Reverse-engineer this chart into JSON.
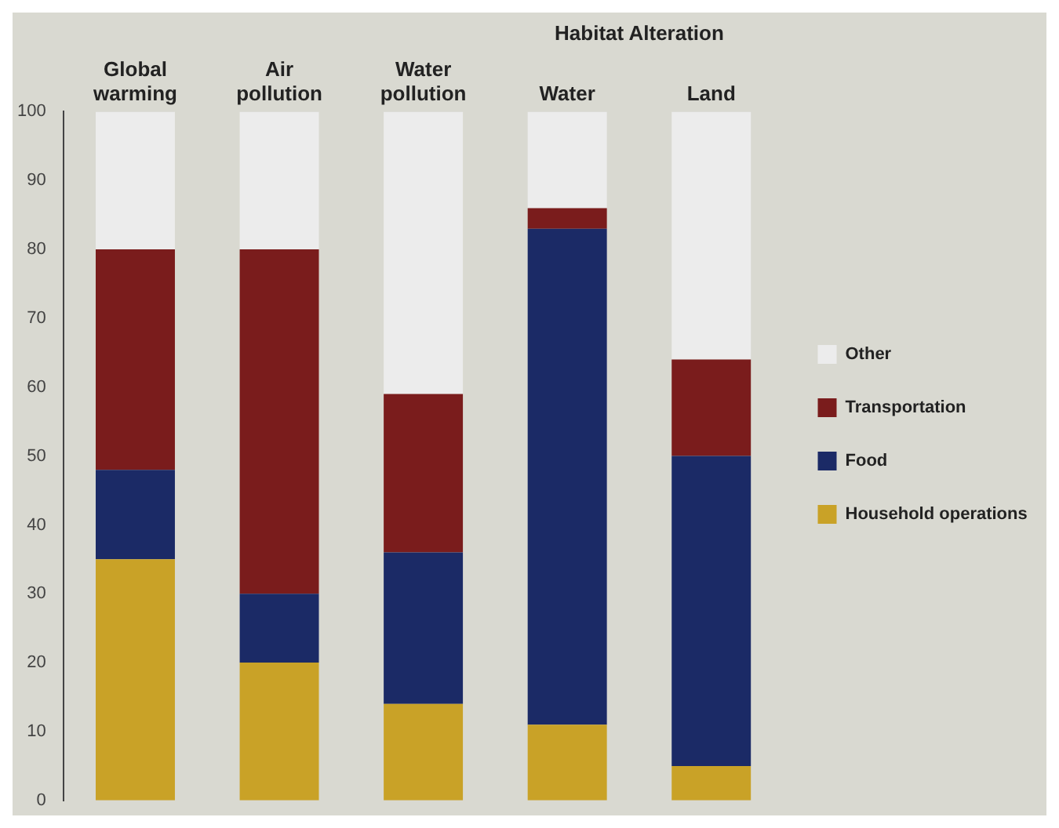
{
  "chart_data": {
    "type": "bar",
    "stacked": true,
    "categories": [
      "Global warming",
      "Air pollution",
      "Water pollution",
      "Water",
      "Land"
    ],
    "series": [
      {
        "name": "Household operations",
        "color": "#c9a227",
        "values": [
          35,
          20,
          14,
          11,
          5
        ]
      },
      {
        "name": "Food",
        "color": "#1b2a66",
        "values": [
          13,
          10,
          22,
          72,
          45
        ]
      },
      {
        "name": "Transportation",
        "color": "#7a1c1c",
        "values": [
          32,
          50,
          23,
          3,
          14
        ]
      },
      {
        "name": "Other",
        "color": "#ececec",
        "values": [
          20,
          20,
          41,
          14,
          36
        ]
      }
    ],
    "annotations": [
      "Habitat Alteration"
    ],
    "ylim": [
      0,
      100
    ],
    "yticks": [
      0,
      10,
      20,
      30,
      40,
      50,
      60,
      70,
      80,
      90,
      100
    ],
    "grid": false,
    "legend": "right"
  }
}
